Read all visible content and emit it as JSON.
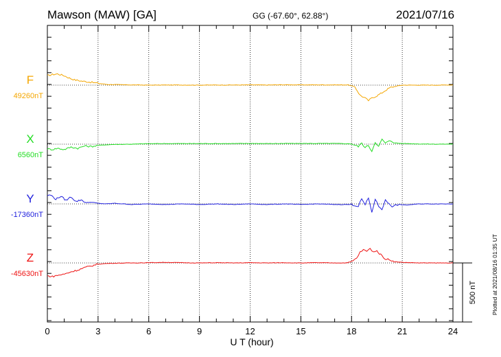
{
  "header": {
    "title": "Mawson (MAW)  [GA]",
    "coords": "GG (-67.60°,  62.88°)",
    "date": "2021/07/16"
  },
  "chart_data": {
    "type": "line",
    "xlabel": "U T (hour)",
    "xlim": [
      0,
      24
    ],
    "xticks": [
      "0",
      "3",
      "6",
      "9",
      "12",
      "15",
      "18",
      "21",
      "24"
    ],
    "scale_bar": {
      "label": "500 nT",
      "value_nT": 500
    },
    "footnote": "Plotted at 2021/08/16 01:35 UT",
    "grid": "dotted vertical every 3 h, dotted baselines",
    "series": [
      {
        "name": "F",
        "baseline_label": "49260nT",
        "baseline_nT": 49260,
        "color": "#f4a600",
        "x": [
          0,
          0.3,
          0.6,
          1.0,
          1.3,
          1.6,
          2.0,
          2.4,
          2.8,
          3.2,
          3.6,
          4.0,
          4.5,
          5.0,
          6.0,
          7.0,
          8.0,
          9.0,
          10.0,
          11.0,
          12.0,
          13.0,
          14.0,
          15.0,
          16.0,
          17.0,
          17.8,
          18.2,
          18.5,
          18.8,
          19.0,
          19.2,
          19.5,
          19.8,
          20.0,
          20.3,
          20.6,
          21.0,
          22.0,
          23.0,
          24.0
        ],
        "y": [
          80,
          90,
          95,
          80,
          60,
          45,
          35,
          28,
          20,
          12,
          5,
          5,
          3,
          2,
          0,
          1,
          1,
          0,
          1,
          1,
          2,
          1,
          3,
          2,
          2,
          2,
          2,
          -15,
          -85,
          -110,
          -130,
          -110,
          -90,
          -65,
          -45,
          -20,
          -10,
          0,
          0,
          0,
          2
        ]
      },
      {
        "name": "X",
        "baseline_label": "6560nT",
        "baseline_nT": 6560,
        "color": "#22dd22",
        "x": [
          0,
          0.3,
          0.6,
          1.0,
          1.4,
          1.8,
          2.2,
          2.6,
          3.0,
          3.5,
          4.0,
          5.0,
          6.0,
          7.0,
          8.0,
          9.0,
          10.0,
          11.0,
          12.0,
          13.0,
          14.0,
          15.0,
          16.0,
          17.0,
          18.0,
          18.4,
          18.6,
          18.8,
          19.0,
          19.2,
          19.4,
          19.6,
          19.8,
          20.0,
          20.3,
          20.6,
          21.0,
          22.0,
          23.0,
          24.0
        ],
        "y": [
          -40,
          -45,
          -35,
          -45,
          -25,
          -35,
          -15,
          -20,
          -10,
          -5,
          -2,
          0,
          4,
          5,
          5,
          5,
          5,
          5,
          6,
          5,
          6,
          6,
          6,
          6,
          3,
          -20,
          10,
          -30,
          -10,
          -60,
          20,
          -20,
          40,
          10,
          30,
          10,
          6,
          2,
          0,
          1
        ]
      },
      {
        "name": "Y",
        "baseline_label": "-17360nT",
        "baseline_nT": -17360,
        "color": "#2020dd",
        "x": [
          0,
          0.2,
          0.5,
          0.8,
          1.1,
          1.4,
          1.7,
          2.0,
          2.3,
          2.6,
          3.0,
          3.5,
          4.0,
          5.0,
          6.0,
          7.0,
          8.0,
          9.0,
          10.0,
          11.0,
          12.0,
          13.0,
          14.0,
          15.0,
          16.0,
          17.0,
          18.0,
          18.4,
          18.6,
          18.8,
          19.0,
          19.2,
          19.4,
          19.6,
          19.8,
          20.0,
          20.4,
          20.8,
          21.2,
          22.0,
          23.0,
          24.0
        ],
        "y": [
          70,
          75,
          40,
          65,
          30,
          60,
          20,
          35,
          10,
          15,
          5,
          0,
          5,
          -5,
          0,
          -5,
          0,
          -5,
          0,
          -5,
          0,
          -5,
          0,
          -5,
          0,
          -5,
          -5,
          -20,
          45,
          -10,
          50,
          -70,
          40,
          -20,
          -45,
          30,
          -20,
          -5,
          -10,
          0,
          0,
          0
        ]
      },
      {
        "name": "Z",
        "baseline_label": "-45630nT",
        "baseline_nT": -45630,
        "color": "#ee1111",
        "x": [
          0,
          0.3,
          0.6,
          1.0,
          1.4,
          1.8,
          2.2,
          2.6,
          3.0,
          3.5,
          4.0,
          5.0,
          6.0,
          7.0,
          8.0,
          9.0,
          10.0,
          11.0,
          12.0,
          13.0,
          14.0,
          15.0,
          16.0,
          17.0,
          17.6,
          18.0,
          18.3,
          18.5,
          18.7,
          18.9,
          19.1,
          19.3,
          19.5,
          19.8,
          20.0,
          20.3,
          20.6,
          21.0,
          22.0,
          23.0,
          24.0
        ],
        "y": [
          -110,
          -115,
          -105,
          -95,
          -75,
          -60,
          -40,
          -25,
          -10,
          -5,
          -2,
          0,
          2,
          5,
          2,
          0,
          2,
          0,
          2,
          0,
          2,
          0,
          2,
          0,
          0,
          10,
          40,
          90,
          110,
          100,
          120,
          95,
          100,
          60,
          35,
          25,
          10,
          5,
          0,
          0,
          0
        ]
      }
    ]
  }
}
